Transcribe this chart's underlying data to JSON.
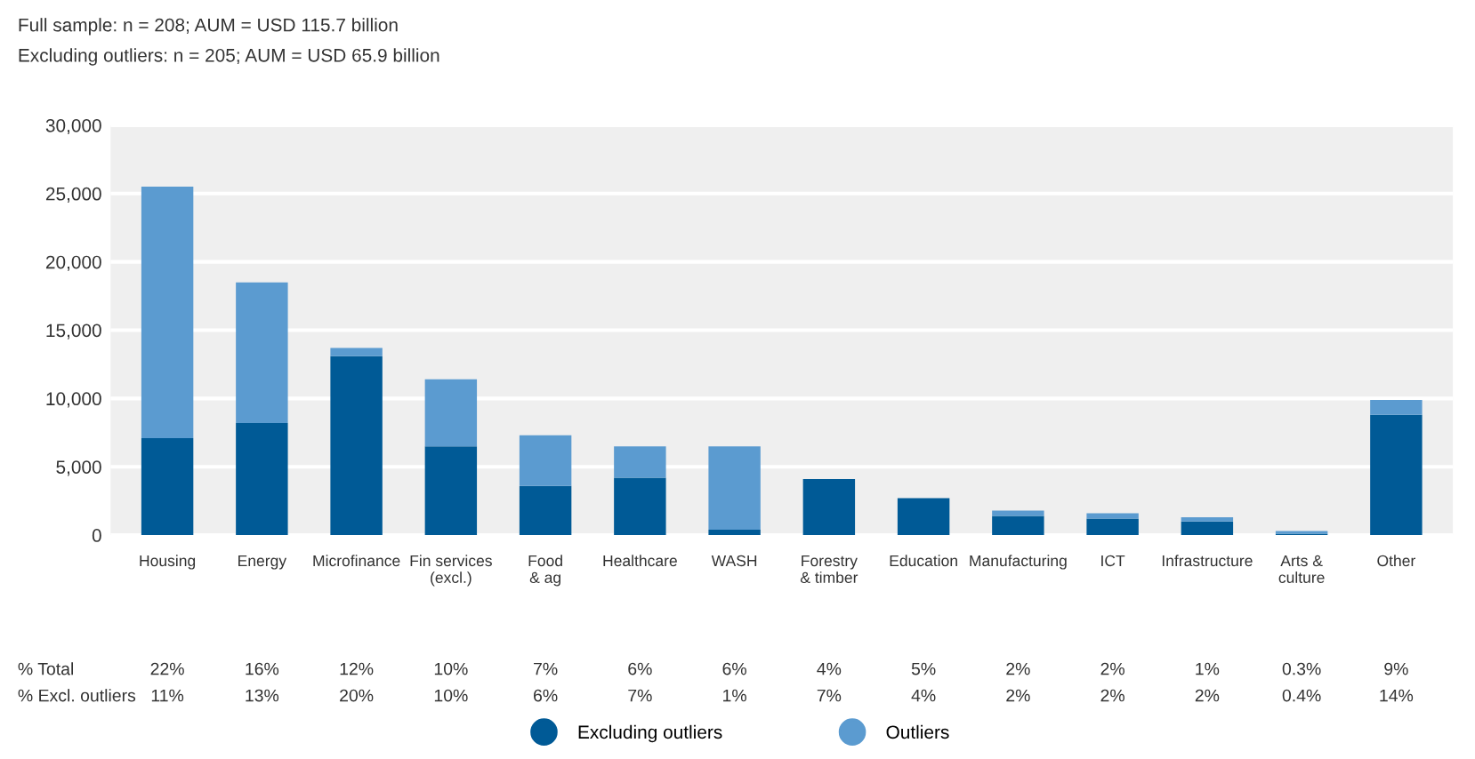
{
  "chart_data": {
    "type": "bar",
    "stacked": true,
    "title": "Full sample: n = 208; AUM = USD 115.7 billion",
    "subtitle": "Excluding outliers: n = 205; AUM = USD 65.9 billion",
    "categories": [
      "Housing",
      "Energy",
      "Microfinance",
      "Fin services\n(excl.)",
      "Food\n& ag",
      "Healthcare",
      "WASH",
      "Forestry\n& timber",
      "Education",
      "Manufacturing",
      "ICT",
      "Infrastructure",
      "Arts &\nculture",
      "Other"
    ],
    "series": [
      {
        "name": "Excluding outliers",
        "color": "#005a96",
        "values": [
          7100,
          8200,
          13100,
          6500,
          3600,
          4200,
          400,
          4100,
          2700,
          1400,
          1200,
          1000,
          100,
          8800
        ]
      },
      {
        "name": "Outliers",
        "color": "#5b9bd0",
        "values": [
          18400,
          10300,
          600,
          4900,
          3700,
          2300,
          6100,
          0,
          0,
          400,
          400,
          300,
          200,
          1100
        ]
      }
    ],
    "ylim": [
      0,
      30000
    ],
    "yticks": [
      0,
      {
        "value": 5000,
        "label": "5,000"
      },
      {
        "value": 10000,
        "label": "10,000"
      },
      {
        "value": 15000,
        "label": "15,000"
      },
      {
        "value": 20000,
        "label": "20,000"
      },
      {
        "value": 25000,
        "label": "25,000"
      },
      {
        "value": 30000,
        "label": "30,000"
      }
    ],
    "grid": "y",
    "legend": "bottom",
    "marker": "circle",
    "annotations": [
      "% Total",
      "22%",
      "16%",
      "12%",
      "10%",
      "7%",
      "6%",
      "6%",
      "4%",
      "5%",
      "2%",
      "2%",
      "1%",
      "0.3%",
      "9%",
      "% Excl. outliers",
      "11%",
      "13%",
      "20%",
      "10%",
      "6%",
      "7%",
      "1%",
      "7%",
      "4%",
      "2%",
      "2%",
      "2%",
      "0.4%",
      "14%"
    ]
  }
}
